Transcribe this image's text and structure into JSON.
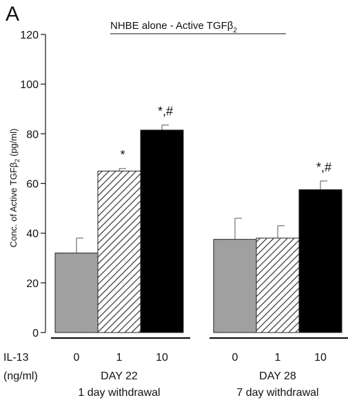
{
  "chart_data": {
    "type": "bar",
    "panel_label": "A",
    "title": "NHBE alone - Active TGFβ",
    "title_subscript": "2",
    "ylabel": "Conc. of Active TGFβ",
    "ylabel_subscript": "2",
    "ylabel_unit": "(pg/ml)",
    "ylim": [
      0,
      120
    ],
    "yticks": [
      "0",
      "20",
      "40",
      "60",
      "80",
      "100",
      "120"
    ],
    "row_label_top": "IL-13",
    "row_label_bottom": "(ng/ml)",
    "groups": [
      {
        "day_label": "DAY 22",
        "withdrawal_label": "1 day withdrawal",
        "bars": [
          {
            "dose": "0",
            "value": 32,
            "error": 6,
            "style": "gray",
            "annotation": ""
          },
          {
            "dose": "1",
            "value": 65,
            "error": 1,
            "style": "hatched",
            "annotation": "*"
          },
          {
            "dose": "10",
            "value": 81.5,
            "error": 2,
            "style": "black",
            "annotation": "*,#"
          }
        ]
      },
      {
        "day_label": "DAY 28",
        "withdrawal_label": "7 day withdrawal",
        "bars": [
          {
            "dose": "0",
            "value": 37.5,
            "error": 8.5,
            "style": "gray",
            "annotation": ""
          },
          {
            "dose": "1",
            "value": 38,
            "error": 5,
            "style": "hatched",
            "annotation": ""
          },
          {
            "dose": "10",
            "value": 57.5,
            "error": 3.5,
            "style": "black",
            "annotation": "*,#"
          }
        ]
      }
    ],
    "colors": {
      "gray": "#9b9b9b",
      "black": "#000000",
      "hatch": "#333333"
    }
  }
}
